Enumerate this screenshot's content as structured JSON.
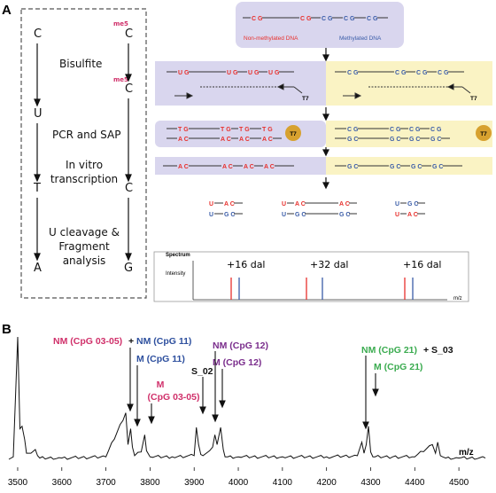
{
  "panel_a": {
    "label": "A",
    "left_box": {
      "c1": "C",
      "u": "U",
      "t": "T",
      "a": "A",
      "me": "me5",
      "c2": "C",
      "c3": "C",
      "c4": "C",
      "g": "G",
      "step1": "Bisulfite",
      "step2": "PCR and SAP",
      "step3_line1": "In vitro",
      "step3_line2": "transcription",
      "step4_line1": "U cleavage &",
      "step4_line2": "Fragment",
      "step4_line3": "analysis"
    },
    "top": {
      "seq_nonmeth": "C G",
      "seq_meth": "C G",
      "label_nonmeth": "Non-methylated DNA",
      "label_meth": "Methylated DNA"
    },
    "row1": {
      "ug": "U G",
      "cg": "C G",
      "t7": "T7"
    },
    "row2": {
      "tg": "T G",
      "ac": "A C",
      "cg": "C G",
      "gc": "G C",
      "t7": "T7"
    },
    "row3": {
      "ac": "A C",
      "gc": "G C"
    },
    "fragments": {
      "u": "U",
      "ac": "A C",
      "gc": "G C",
      "u_gc": "U G C"
    },
    "spectrum": {
      "title": "Spectrum",
      "ylabel": "Intensity",
      "xlabel": "m/z",
      "shift1": "+16 dal",
      "shift2": "+32 dal",
      "shift3": "+16 dal"
    },
    "colors": {
      "red": "#e8302c",
      "blue": "#3a5ca8",
      "purple_box": "#d9d6ee",
      "yellow_box": "#faf3c4",
      "t7_circle": "#d7a12f"
    }
  },
  "panel_b": {
    "label": "B",
    "ann": {
      "nm_0305": "NM (CpG 03-05)",
      "plus1": "+",
      "nm_11": "NM (CpG 11)",
      "m_11": "M (CpG 11)",
      "m_0305_line1": "M",
      "m_0305_line2": "(CpG 03-05)",
      "s02": "S_02",
      "nm_12": "NM (CpG 12)",
      "m_12": "M (CpG 12)",
      "nm_21": "NM (CpG 21)",
      "plus2": "+ S_03",
      "m_21": "M (CpG 21)",
      "mz": "m/z"
    },
    "ann_colors": {
      "nm_0305": "#d0306a",
      "nm_11": "#2d4f9e",
      "m_11": "#2d4f9e",
      "m_0305": "#d0306a",
      "nm_12": "#7a2d8c",
      "m_12": "#7a2d8c",
      "nm_21": "#3aab4f",
      "m_21": "#3aab4f"
    },
    "chart_data": {
      "type": "line",
      "xlabel": "m/z",
      "ylabel": "",
      "xlim": [
        3480,
        4560
      ],
      "x_ticks": [
        "3500",
        "3600",
        "3700",
        "3800",
        "3900",
        "4000",
        "4100",
        "4200",
        "4300",
        "4400",
        "4500"
      ],
      "x": [
        3480,
        3490,
        3500,
        3505,
        3510,
        3516,
        3520,
        3530,
        3540,
        3545,
        3550,
        3600,
        3700,
        3745,
        3750,
        3756,
        3760,
        3765,
        3780,
        3788,
        3792,
        3800,
        3850,
        3900,
        3905,
        3910,
        3915,
        3920,
        3935,
        3942,
        3947,
        3952,
        3960,
        3966,
        3970,
        4000,
        4100,
        4200,
        4270,
        4280,
        4285,
        4290,
        4295,
        4300,
        4305,
        4310,
        4350,
        4400,
        4440,
        4447,
        4452,
        4458,
        4463,
        4470,
        4500,
        4560
      ],
      "values": [
        0.0,
        0.02,
        1.0,
        0.25,
        0.27,
        0.16,
        0.05,
        0.05,
        0.08,
        0.03,
        0.01,
        0.01,
        0.02,
        0.38,
        0.12,
        0.25,
        0.1,
        0.03,
        0.06,
        0.2,
        0.07,
        0.02,
        0.02,
        0.03,
        0.26,
        0.12,
        0.04,
        0.03,
        0.07,
        0.1,
        0.2,
        0.12,
        0.26,
        0.08,
        0.02,
        0.02,
        0.02,
        0.02,
        0.03,
        0.14,
        0.05,
        0.12,
        0.27,
        0.06,
        0.02,
        0.02,
        0.02,
        0.02,
        0.12,
        0.05,
        0.14,
        0.03,
        0.02,
        0.01,
        0.01,
        0.01
      ]
    }
  }
}
